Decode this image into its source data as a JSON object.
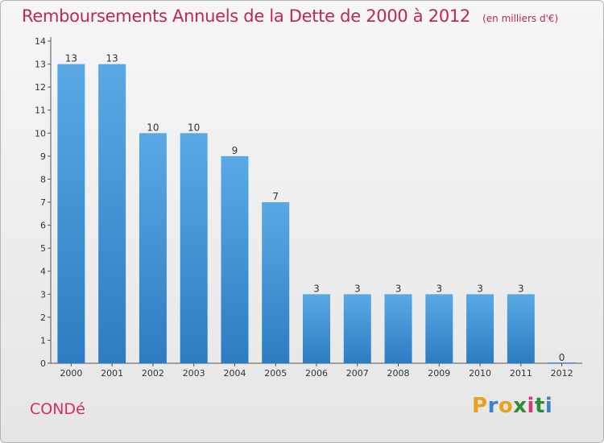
{
  "title": "Remboursements Annuels de la Dette de 2000 à 2012",
  "unit_note": "(en milliers d'€)",
  "commune": "CONDé",
  "brand": {
    "letters": [
      "P",
      "r",
      "o",
      "x",
      "i",
      "t",
      "i"
    ],
    "colors": [
      "#e9a21e",
      "#3a84c9",
      "#e9a21e",
      "#2e8b3a",
      "#d63a7a",
      "#2e8b3a",
      "#3a84c9"
    ]
  },
  "chart_data": {
    "type": "bar",
    "title": "Remboursements Annuels de la Dette de 2000 à 2012",
    "ylabel": "(en milliers d'€)",
    "categories": [
      "2000",
      "2001",
      "2002",
      "2003",
      "2004",
      "2005",
      "2006",
      "2007",
      "2008",
      "2009",
      "2010",
      "2011",
      "2012"
    ],
    "values": [
      13,
      13,
      10,
      10,
      9,
      7,
      3,
      3,
      3,
      3,
      3,
      3,
      0
    ],
    "data_labels": [
      "13",
      "13",
      "10",
      "10",
      "9",
      "7",
      "3",
      "3",
      "3",
      "3",
      "3",
      "3",
      "0"
    ],
    "ylim": [
      0,
      14
    ],
    "yticks": [
      0,
      1,
      2,
      3,
      4,
      5,
      6,
      7,
      8,
      9,
      10,
      11,
      12,
      13,
      14
    ],
    "bar_color": "#3f94d8",
    "grid": false,
    "legend": "none"
  }
}
